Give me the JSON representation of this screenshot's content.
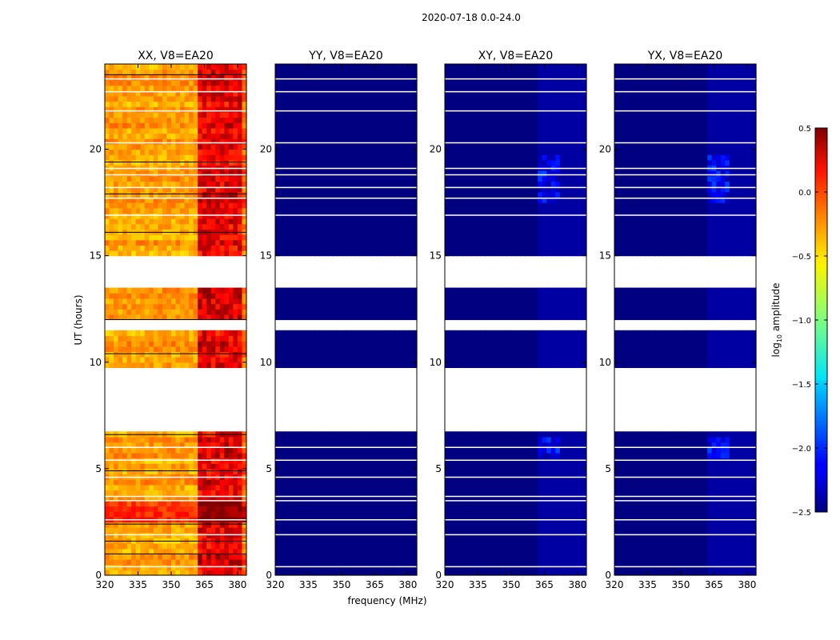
{
  "chart_data": {
    "type": "heatmap",
    "suptitle": "2020-07-18 0.0-24.0",
    "xlabel": "frequency (MHz)",
    "ylabel": "UT (hours)",
    "xlim": [
      320,
      384
    ],
    "ylim": [
      0,
      24
    ],
    "xticks": [
      320,
      335,
      350,
      365,
      380
    ],
    "yticks": [
      0,
      5,
      10,
      15,
      20
    ],
    "colorbar": {
      "label_main": "log",
      "label_sub": "10",
      "label_tail": " amplitude",
      "vmin": -2.5,
      "vmax": 0.5,
      "ticks": [
        "0.5",
        "0.0",
        "−0.5",
        "−1.0",
        "−1.5",
        "−2.0",
        "−2.5"
      ],
      "colormap": "jet"
    },
    "gaps_hours": [
      [
        6.7,
        9.8
      ],
      [
        11.4,
        12.0
      ],
      [
        13.6,
        14.9
      ],
      [
        16.0,
        16.1
      ]
    ],
    "white_lines_hours": [
      0.4,
      1.9,
      2.6,
      3.5,
      3.7,
      4.6,
      5.4,
      6.0,
      16.9,
      17.7,
      18.2,
      18.8,
      19.1,
      20.3,
      21.8,
      22.7,
      23.3
    ],
    "black_lines_hours": [
      1.0,
      1.6,
      2.4,
      4.9,
      6.6,
      10.4,
      12.0,
      16.1,
      17.9,
      19.4,
      23.5
    ],
    "panels": [
      {
        "title": "XX, V8=EA20",
        "polarization": "XX",
        "mean_log_amplitude_low_band": -0.35,
        "mean_log_amplitude_high_band": 0.2,
        "high_band_start_mhz": 363
      },
      {
        "title": "YY, V8=EA20",
        "polarization": "YY",
        "mean_log_amplitude_low_band": -2.5,
        "mean_log_amplitude_high_band": -2.5,
        "high_band_start_mhz": 363
      },
      {
        "title": "XY, V8=EA20",
        "polarization": "XY",
        "mean_log_amplitude_low_band": -2.5,
        "mean_log_amplitude_high_band": -2.4,
        "high_band_start_mhz": 363
      },
      {
        "title": "YX, V8=EA20",
        "polarization": "YX",
        "mean_log_amplitude_low_band": -2.5,
        "mean_log_amplitude_high_band": -2.4,
        "high_band_start_mhz": 363
      }
    ]
  }
}
